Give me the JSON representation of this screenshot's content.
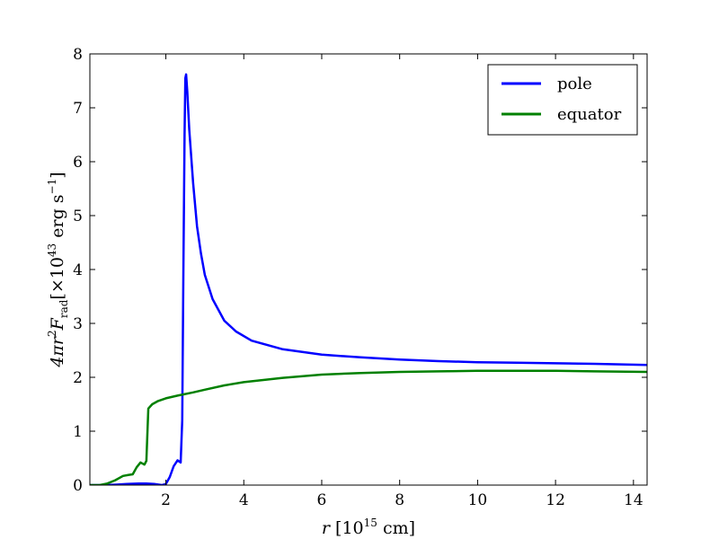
{
  "chart_data": {
    "type": "line",
    "xlabel": {
      "var": "r",
      "rest": " [10",
      "exp": "15",
      "unit": " cm]"
    },
    "ylabel": {
      "pre": "4πr",
      "sq": "2",
      "F": "F",
      "sub": "rad",
      "bracket": "[×10",
      "exp": "43",
      "unit": " erg s",
      "negexp": "−1",
      "close": "]"
    },
    "xlim": [
      0.05,
      14.35
    ],
    "ylim": [
      0,
      8
    ],
    "xticks": [
      2,
      4,
      6,
      8,
      10,
      12,
      14
    ],
    "yticks": [
      0,
      1,
      2,
      3,
      4,
      5,
      6,
      7,
      8
    ],
    "grid": false,
    "legend_position": "top-right",
    "series": [
      {
        "name": "pole",
        "color": "#0000ff",
        "points": [
          [
            0.05,
            0.0
          ],
          [
            0.5,
            0.0
          ],
          [
            1.0,
            0.02
          ],
          [
            1.3,
            0.03
          ],
          [
            1.5,
            0.03
          ],
          [
            1.7,
            0.02
          ],
          [
            1.9,
            0.0
          ],
          [
            2.0,
            0.02
          ],
          [
            2.1,
            0.15
          ],
          [
            2.2,
            0.35
          ],
          [
            2.3,
            0.46
          ],
          [
            2.38,
            0.42
          ],
          [
            2.42,
            1.2
          ],
          [
            2.45,
            4.0
          ],
          [
            2.48,
            6.5
          ],
          [
            2.5,
            7.55
          ],
          [
            2.52,
            7.62
          ],
          [
            2.55,
            7.3
          ],
          [
            2.6,
            6.6
          ],
          [
            2.7,
            5.6
          ],
          [
            2.8,
            4.8
          ],
          [
            2.9,
            4.3
          ],
          [
            3.0,
            3.9
          ],
          [
            3.2,
            3.45
          ],
          [
            3.5,
            3.05
          ],
          [
            3.8,
            2.85
          ],
          [
            4.2,
            2.68
          ],
          [
            5.0,
            2.52
          ],
          [
            6.0,
            2.42
          ],
          [
            7.0,
            2.37
          ],
          [
            8.0,
            2.33
          ],
          [
            9.0,
            2.3
          ],
          [
            10.0,
            2.28
          ],
          [
            11.0,
            2.27
          ],
          [
            12.0,
            2.26
          ],
          [
            13.0,
            2.25
          ],
          [
            14.35,
            2.23
          ]
        ]
      },
      {
        "name": "equator",
        "color": "#008000",
        "points": [
          [
            0.05,
            0.0
          ],
          [
            0.3,
            0.0
          ],
          [
            0.5,
            0.03
          ],
          [
            0.7,
            0.09
          ],
          [
            0.9,
            0.17
          ],
          [
            1.05,
            0.19
          ],
          [
            1.15,
            0.2
          ],
          [
            1.25,
            0.33
          ],
          [
            1.35,
            0.42
          ],
          [
            1.45,
            0.38
          ],
          [
            1.5,
            0.45
          ],
          [
            1.55,
            1.42
          ],
          [
            1.65,
            1.5
          ],
          [
            1.8,
            1.56
          ],
          [
            2.0,
            1.61
          ],
          [
            2.3,
            1.66
          ],
          [
            2.7,
            1.72
          ],
          [
            3.0,
            1.77
          ],
          [
            3.5,
            1.85
          ],
          [
            4.0,
            1.91
          ],
          [
            5.0,
            1.99
          ],
          [
            6.0,
            2.05
          ],
          [
            7.0,
            2.08
          ],
          [
            8.0,
            2.1
          ],
          [
            9.0,
            2.11
          ],
          [
            10.0,
            2.12
          ],
          [
            11.0,
            2.12
          ],
          [
            12.0,
            2.12
          ],
          [
            13.0,
            2.11
          ],
          [
            14.35,
            2.1
          ]
        ]
      }
    ]
  }
}
